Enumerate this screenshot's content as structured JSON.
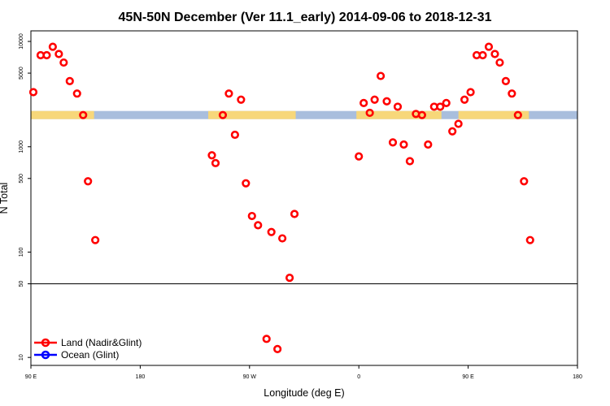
{
  "chart_data": {
    "type": "scatter",
    "title": "45N-50N December (Ver 11.1_early)   2014-09-06 to 2018-12-31",
    "xlabel": "Longitude (deg E)",
    "ylabel": "N Total",
    "y_scale": "log",
    "ylim": [
      8.4,
      12600
    ],
    "x_ticks": [
      {
        "value": 0,
        "label": "90 E"
      },
      {
        "value": 90,
        "label": "180"
      },
      {
        "value": 180,
        "label": "90 W"
      },
      {
        "value": 270,
        "label": "0"
      },
      {
        "value": 360,
        "label": "90 E"
      },
      {
        "value": 450,
        "label": "180"
      }
    ],
    "xlim": [
      0,
      450
    ],
    "y_ticks": [
      10,
      50,
      100,
      500,
      1000,
      5000,
      10000
    ],
    "reference_line": {
      "y": 50
    },
    "surface_strip": {
      "y_value": 2000,
      "land_color": "#F7D77A",
      "ocean_color": "#A9BEDD",
      "land_segments": [
        [
          0,
          52
        ],
        [
          146,
          218
        ],
        [
          268,
          338
        ],
        [
          352,
          410
        ]
      ]
    },
    "legend": {
      "position": "bottom-left",
      "entries": [
        {
          "label": "Land (Nadir&Glint)",
          "color": "#FF0000"
        },
        {
          "label": "Ocean (Glint)",
          "color": "#0000FF"
        }
      ]
    },
    "series": [
      {
        "name": "Land (Nadir&Glint)",
        "color": "#FF0000",
        "points": [
          {
            "x": 2,
            "y": 3300
          },
          {
            "x": 8,
            "y": 7400
          },
          {
            "x": 13,
            "y": 7400
          },
          {
            "x": 18,
            "y": 8900
          },
          {
            "x": 23,
            "y": 7600
          },
          {
            "x": 27,
            "y": 6300
          },
          {
            "x": 32,
            "y": 4200
          },
          {
            "x": 38,
            "y": 3200
          },
          {
            "x": 43,
            "y": 2000
          },
          {
            "x": 47,
            "y": 470
          },
          {
            "x": 53,
            "y": 130
          },
          {
            "x": 149,
            "y": 830
          },
          {
            "x": 152,
            "y": 700
          },
          {
            "x": 158,
            "y": 2000
          },
          {
            "x": 163,
            "y": 3200
          },
          {
            "x": 168,
            "y": 1300
          },
          {
            "x": 173,
            "y": 2800
          },
          {
            "x": 177,
            "y": 450
          },
          {
            "x": 182,
            "y": 220
          },
          {
            "x": 187,
            "y": 180
          },
          {
            "x": 194,
            "y": 15
          },
          {
            "x": 198,
            "y": 155
          },
          {
            "x": 203,
            "y": 12
          },
          {
            "x": 207,
            "y": 135
          },
          {
            "x": 213,
            "y": 57
          },
          {
            "x": 217,
            "y": 230
          },
          {
            "x": 270,
            "y": 810
          },
          {
            "x": 274,
            "y": 2600
          },
          {
            "x": 279,
            "y": 2100
          },
          {
            "x": 283,
            "y": 2800
          },
          {
            "x": 288,
            "y": 4700
          },
          {
            "x": 293,
            "y": 2700
          },
          {
            "x": 298,
            "y": 1100
          },
          {
            "x": 302,
            "y": 2400
          },
          {
            "x": 307,
            "y": 1050
          },
          {
            "x": 312,
            "y": 730
          },
          {
            "x": 317,
            "y": 2050
          },
          {
            "x": 322,
            "y": 2000
          },
          {
            "x": 327,
            "y": 1050
          },
          {
            "x": 332,
            "y": 2400
          },
          {
            "x": 337,
            "y": 2400
          },
          {
            "x": 342,
            "y": 2600
          },
          {
            "x": 347,
            "y": 1400
          },
          {
            "x": 352,
            "y": 1650
          },
          {
            "x": 357,
            "y": 2800
          },
          {
            "x": 362,
            "y": 3300
          },
          {
            "x": 367,
            "y": 7400
          },
          {
            "x": 372,
            "y": 7400
          },
          {
            "x": 377,
            "y": 8900
          },
          {
            "x": 382,
            "y": 7600
          },
          {
            "x": 386,
            "y": 6300
          },
          {
            "x": 391,
            "y": 4200
          },
          {
            "x": 396,
            "y": 3200
          },
          {
            "x": 401,
            "y": 2000
          },
          {
            "x": 406,
            "y": 470
          },
          {
            "x": 411,
            "y": 130
          }
        ]
      },
      {
        "name": "Ocean (Glint)",
        "color": "#0000FF",
        "points": []
      }
    ]
  }
}
